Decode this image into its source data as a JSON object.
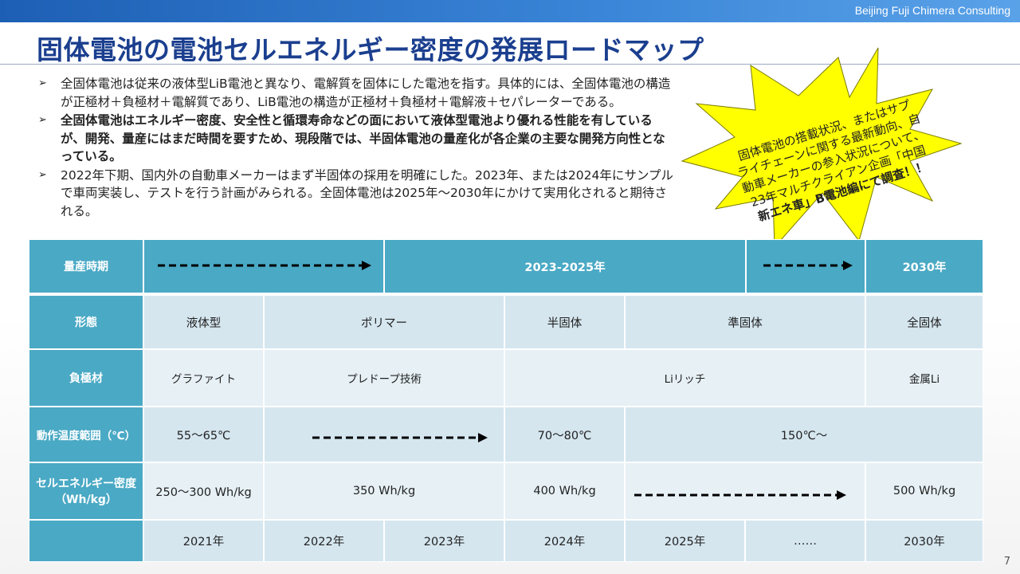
{
  "header": {
    "brand": "Beijing Fuji Chimera Consulting"
  },
  "title": "固体電池の電池セルエネルギー密度の発展ロードマップ",
  "bullets": [
    {
      "marker": "➢",
      "bold": false,
      "text": "全固体電池は従来の液体型LiB電池と異なり、電解質を固体にした電池を指す。具体的には、全固体電池の構造が正極材＋負極材＋電解質であり、LiB電池の構造が正極材＋負極材＋電解液＋セパレーターである。"
    },
    {
      "marker": "➢",
      "bold": true,
      "text": "全固体電池はエネルギー密度、安全性と循環寿命などの面において液体型電池より優れる性能を有しているが、開発、量産にはまだ時間を要すため、現段階では、半固体電池の量産化が各企業の主要な開発方向性となっている。"
    },
    {
      "marker": "➢",
      "bold": false,
      "text": "2022年下期、国内外の自動車メーカーはまず半固体の採用を明確にした。2023年、または2024年にサンプルで車両実装し、テストを行う計画がみられる。全固体電池は2025年～2030年にかけて実用化されると期待される。"
    }
  ],
  "callout": {
    "lines": [
      "固体電池の搭載状況、またはサプ",
      "ライチェーンに関する最新動向、自",
      "動車メーカーの参入状況について、",
      "23年マルチクライアン企画「中国",
      "新エネ車」B電池編にて調査！！"
    ]
  },
  "table": {
    "mass_production": {
      "label": "量産時期",
      "mid": "2023-2025年",
      "end": "2030年"
    },
    "form": {
      "label": "形態",
      "c1": "液体型",
      "c2": "ポリマー",
      "c3": "半固体",
      "c4": "準固体",
      "c5": "全固体"
    },
    "anode": {
      "label": "負極材",
      "c1": "グラファイト",
      "c2": "プレドープ技術",
      "c3": "Liリッチ",
      "c4": "金属Li"
    },
    "temp": {
      "label": "動作温度範囲（℃）",
      "c1": "55～65℃",
      "c2": "70～80℃",
      "c3": "150℃～"
    },
    "density": {
      "label_l1": "セルエネルギー密度",
      "label_l2": "（Wh/kg）",
      "c1": "250～300 Wh/kg",
      "c2": "350 Wh/kg",
      "c3": "400 Wh/kg",
      "c4": "500 Wh/kg"
    },
    "years": [
      "2021年",
      "2022年",
      "2023年",
      "2024年",
      "2025年",
      "……",
      "2030年"
    ]
  },
  "page_number": "7",
  "colors": {
    "title": "#1b3f8f",
    "header_cell": "#4aa9c5",
    "light_cell": "#d5e6ef",
    "star": "#ffff00"
  }
}
